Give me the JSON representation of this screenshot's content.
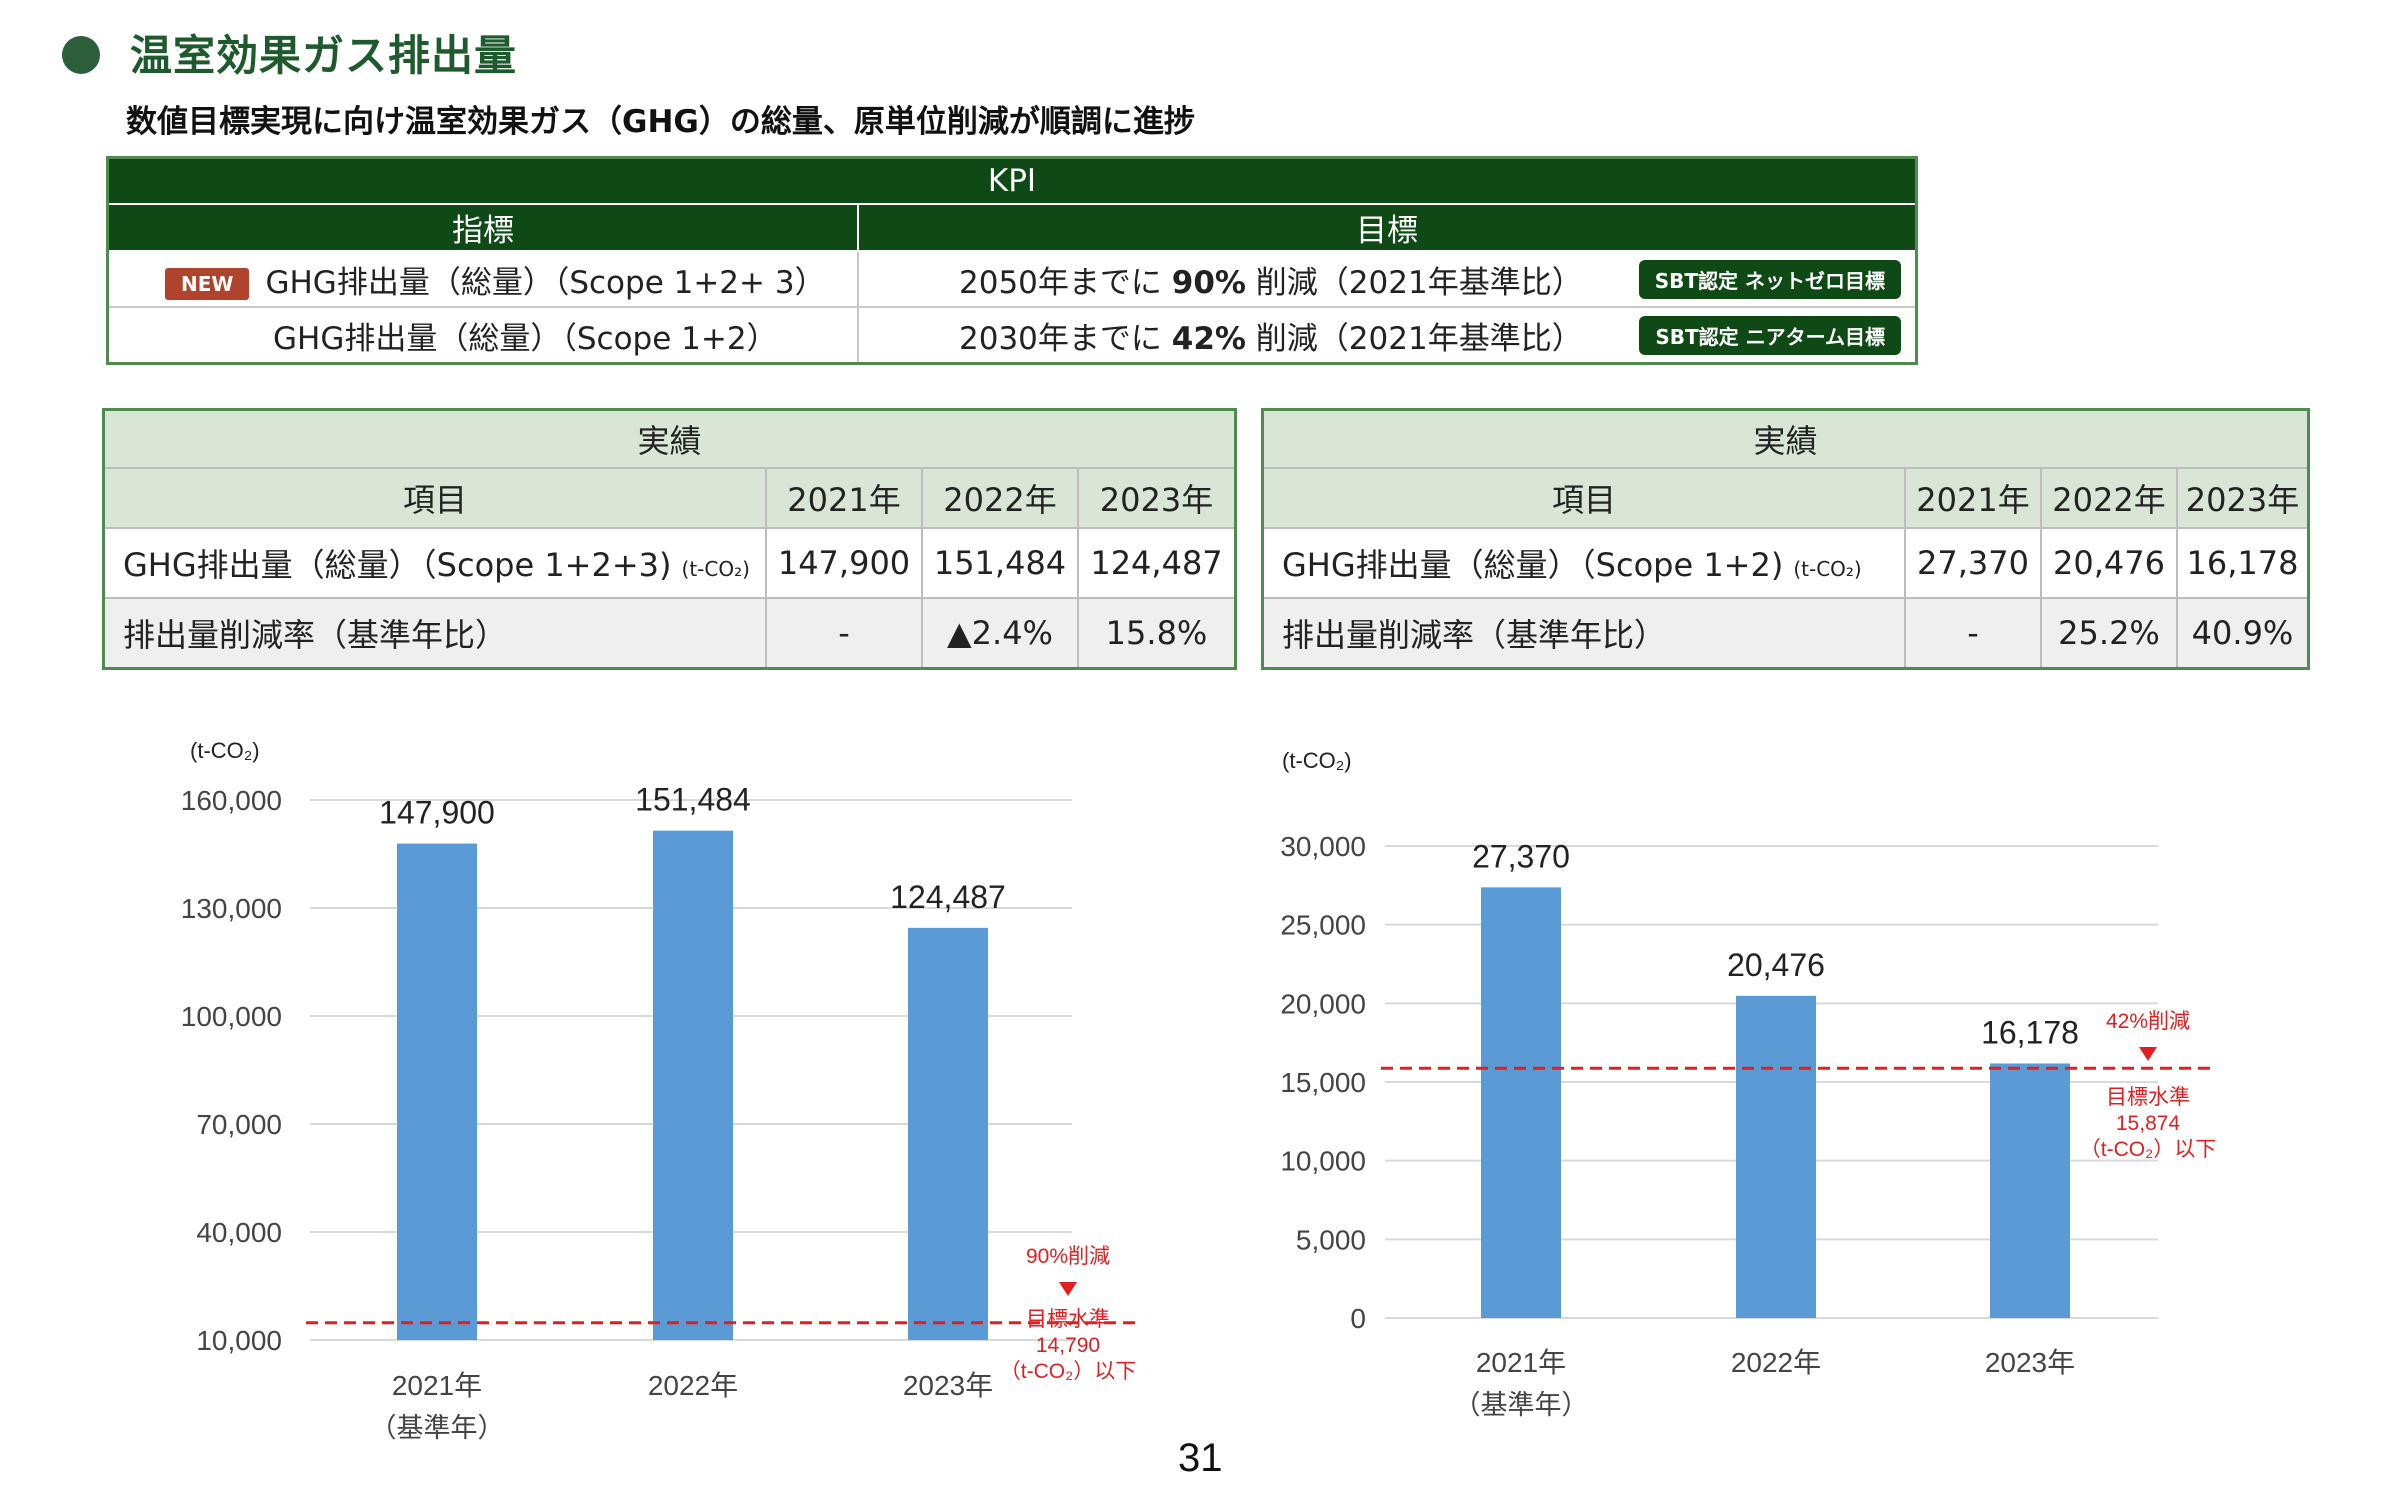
{
  "header": {
    "title": "温室効果ガス排出量",
    "subtitle": "数値目標実現に向け温室効果ガス（GHG）の総量、原単位削減が順調に進捗"
  },
  "kpi": {
    "caption": "KPI",
    "col_indicator": "指標",
    "col_target": "目標",
    "rows": [
      {
        "badge": "NEW",
        "indicator": "GHG排出量（総量）（Scope 1+2+ 3）",
        "target_pre": "2050年までに ",
        "target_bold": "90%",
        "target_post": " 削減（2021年基準比）",
        "tag": "SBT認定  ネットゼロ目標"
      },
      {
        "badge": "",
        "indicator": "GHG排出量（総量）（Scope 1+2）",
        "target_pre": "2030年までに ",
        "target_bold": "42%",
        "target_post": " 削減（2021年基準比）",
        "tag": "SBT認定  ニアターム目標"
      }
    ]
  },
  "results_left": {
    "caption": "実績",
    "col_item": "項目",
    "years": [
      "2021年",
      "2022年",
      "2023年"
    ],
    "row1": {
      "label": "GHG排出量（総量）（Scope 1+2+3)",
      "unit": "(t-CO₂)",
      "values": [
        "147,900",
        "151,484",
        "124,487"
      ]
    },
    "row2": {
      "label": "排出量削減率（基準年比）",
      "values": [
        "-",
        "▲2.4%",
        "15.8%"
      ]
    }
  },
  "results_right": {
    "caption": "実績",
    "col_item": "項目",
    "years": [
      "2021年",
      "2022年",
      "2023年"
    ],
    "row1": {
      "label": "GHG排出量（総量）（Scope 1+2)",
      "unit": "(t-CO₂)",
      "values": [
        "27,370",
        "20,476",
        "16,178"
      ]
    },
    "row2": {
      "label": "排出量削減率（基準年比）",
      "values": [
        "-",
        "25.2%",
        "40.9%"
      ]
    }
  },
  "colors": {
    "bar": "#5b9bd5",
    "target_line": "#e02020",
    "header_green": "#0f4a16",
    "light_green": "#d9e6d6",
    "badge_red": "#b0432b"
  },
  "chart_data": [
    {
      "type": "bar",
      "unit_label": "(t-CO₂)",
      "categories": [
        "2021年",
        "2022年",
        "2023年"
      ],
      "category_sublabels": [
        "（基準年）",
        "",
        ""
      ],
      "values": [
        147900,
        151484,
        124487
      ],
      "value_labels": [
        "147,900",
        "151,484",
        "124,487"
      ],
      "ylim": [
        10000,
        160000
      ],
      "yticks": [
        10000,
        40000,
        70000,
        100000,
        130000,
        160000
      ],
      "ytick_labels": [
        "10,000",
        "40,000",
        "70,000",
        "100,000",
        "130,000",
        "160,000"
      ],
      "grid": true,
      "target": {
        "value": 14790,
        "reduction_label": "90%削減",
        "lines": [
          "目標水準",
          "14,790",
          "（t-CO₂）以下"
        ]
      }
    },
    {
      "type": "bar",
      "unit_label": "(t-CO₂)",
      "categories": [
        "2021年",
        "2022年",
        "2023年"
      ],
      "category_sublabels": [
        "（基準年）",
        "",
        ""
      ],
      "values": [
        27370,
        20476,
        16178
      ],
      "value_labels": [
        "27,370",
        "20,476",
        "16,178"
      ],
      "ylim": [
        0,
        30000
      ],
      "yticks": [
        0,
        5000,
        10000,
        15000,
        20000,
        25000,
        30000
      ],
      "ytick_labels": [
        "0",
        "5,000",
        "10,000",
        "15,000",
        "20,000",
        "25,000",
        "30,000"
      ],
      "grid": true,
      "target": {
        "value": 15874,
        "reduction_label": "42%削減",
        "lines": [
          "目標水準",
          "15,874",
          "（t-CO₂）以下"
        ]
      }
    }
  ],
  "page_number": "31"
}
